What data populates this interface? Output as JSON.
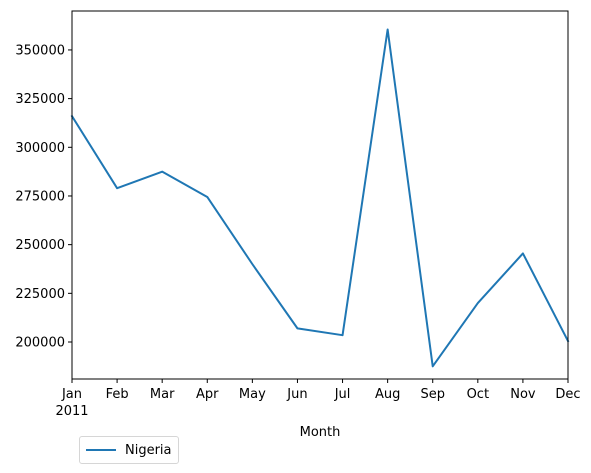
{
  "chart_data": {
    "type": "line",
    "categories": [
      "Jan",
      "Feb",
      "Mar",
      "Apr",
      "May",
      "Jun",
      "Jul",
      "Aug",
      "Sep",
      "Oct",
      "Nov",
      "Dec"
    ],
    "year_label": "2011",
    "series": [
      {
        "name": "Nigeria",
        "color": "#1f77b4",
        "values": [
          316000,
          279000,
          287500,
          274500,
          240000,
          207000,
          203500,
          360500,
          187500,
          220000,
          245500,
          200500
        ]
      }
    ],
    "xlabel": "Month",
    "ylabel": "",
    "ylim": [
      181000,
      370000
    ],
    "yticks": [
      200000,
      225000,
      250000,
      275000,
      300000,
      325000,
      350000
    ],
    "ytick_labels": [
      "200000",
      "225000",
      "250000",
      "275000",
      "300000",
      "325000",
      "350000"
    ],
    "grid": false,
    "legend_position": "bottom-left, below axes"
  }
}
